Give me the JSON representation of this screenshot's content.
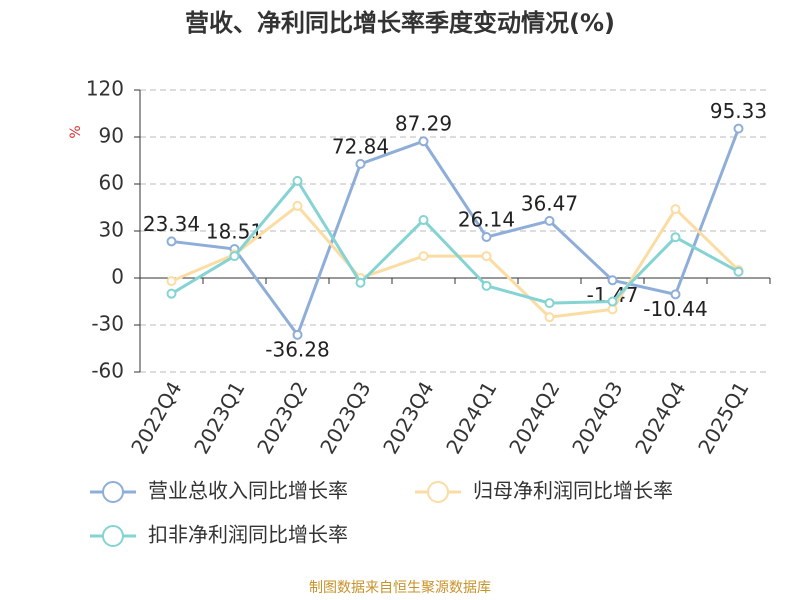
{
  "chart_data": {
    "type": "line",
    "title": "营收、净利同比增长率季度变动情况(%)",
    "y_label": "%",
    "categories": [
      "2022Q4",
      "2023Q1",
      "2023Q2",
      "2023Q3",
      "2023Q4",
      "2024Q1",
      "2024Q2",
      "2024Q3",
      "2024Q4",
      "2025Q1"
    ],
    "series": [
      {
        "name": "营业总收入同比增长率",
        "color": "#8eaed9",
        "values": [
          23.34,
          18.51,
          -36.28,
          72.84,
          87.29,
          26.14,
          36.47,
          -1.47,
          -10.44,
          95.33
        ],
        "data_labels": true
      },
      {
        "name": "归母净利润同比增长率",
        "color": "#fbdca3",
        "values": [
          -2,
          15,
          46,
          0,
          14,
          14,
          -25,
          -20,
          44,
          5
        ]
      },
      {
        "name": "扣非净利润同比增长率",
        "color": "#85d3d3",
        "values": [
          -10,
          14,
          62,
          -3,
          37,
          -5,
          -16,
          -15,
          26,
          4
        ]
      }
    ],
    "ylim": [
      -60,
      120
    ],
    "yticks": [
      -60,
      -30,
      0,
      30,
      60,
      90,
      120
    ],
    "grid": true,
    "source": "制图数据来自恒生聚源数据库"
  }
}
